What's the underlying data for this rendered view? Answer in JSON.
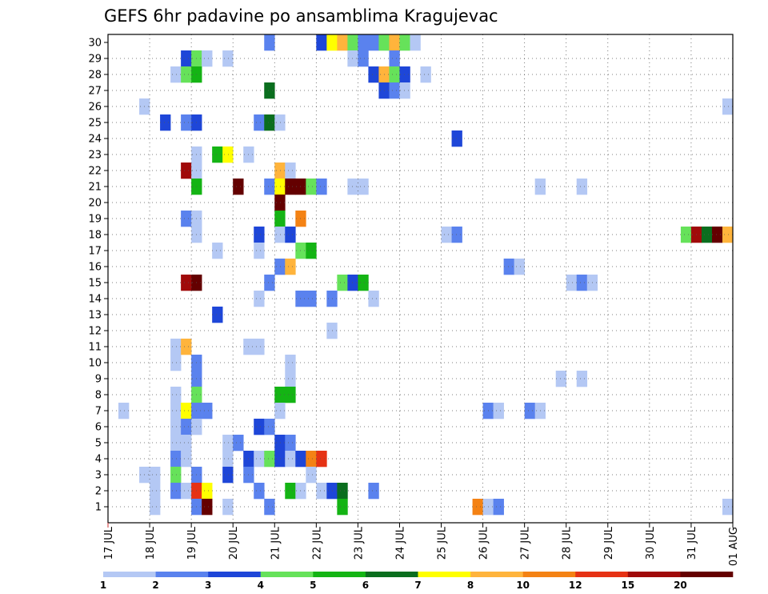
{
  "chart_data": {
    "type": "heatmap",
    "title": "GEFS 6hr padavine po ansamblima Kragujevac",
    "xlabel": "",
    "ylabel": "",
    "x_tick_labels": [
      "17 JUL",
      "18 JUL",
      "19 JUL",
      "20 JUL",
      "21 JUL",
      "22 JUL",
      "23 JUL",
      "24 JUL",
      "25 JUL",
      "26 JUL",
      "27 JUL",
      "28 JUL",
      "29 JUL",
      "30 JUL",
      "31 JUL",
      "01 AUG"
    ],
    "y_tick_labels": [
      "1",
      "2",
      "3",
      "4",
      "5",
      "6",
      "7",
      "8",
      "9",
      "10",
      "11",
      "12",
      "13",
      "14",
      "15",
      "16",
      "17",
      "18",
      "19",
      "20",
      "21",
      "22",
      "23",
      "24",
      "25",
      "26",
      "27",
      "28",
      "29",
      "30"
    ],
    "x_range_steps": [
      0,
      60
    ],
    "y_range": [
      0,
      30
    ],
    "grid": true,
    "colorbar": {
      "levels": [
        "1",
        "2",
        "3",
        "4",
        "5",
        "6",
        "7",
        "8",
        "10",
        "12",
        "15",
        "20"
      ],
      "colors": [
        "#b4c8f4",
        "#5a82ee",
        "#1e46d8",
        "#66e25a",
        "#14b414",
        "#0a6e1e",
        "#ffff00",
        "#ffb43c",
        "#f48214",
        "#e63214",
        "#a00a0a",
        "#640000"
      ]
    },
    "cells_note": "each cell: [6-hour step from 17 JUL 00Z, ensemble member, color class index 0-11]",
    "cells": [
      [
        15,
        30,
        1
      ],
      [
        20,
        30,
        2
      ],
      [
        21,
        30,
        6
      ],
      [
        22,
        30,
        7
      ],
      [
        23,
        30,
        3
      ],
      [
        24,
        30,
        1
      ],
      [
        25,
        30,
        1
      ],
      [
        26,
        30,
        3
      ],
      [
        27,
        30,
        7
      ],
      [
        28,
        30,
        3
      ],
      [
        29,
        30,
        0
      ],
      [
        7,
        29,
        2
      ],
      [
        8,
        29,
        3
      ],
      [
        9,
        29,
        0
      ],
      [
        11,
        29,
        0
      ],
      [
        23,
        29,
        0
      ],
      [
        24,
        29,
        1
      ],
      [
        27,
        29,
        1
      ],
      [
        6,
        28,
        0
      ],
      [
        7,
        28,
        3
      ],
      [
        8,
        28,
        4
      ],
      [
        25,
        28,
        2
      ],
      [
        26,
        28,
        7
      ],
      [
        27,
        28,
        3
      ],
      [
        28,
        28,
        2
      ],
      [
        30,
        28,
        0
      ],
      [
        15,
        27,
        5
      ],
      [
        26,
        27,
        2
      ],
      [
        27,
        27,
        1
      ],
      [
        28,
        27,
        0
      ],
      [
        3,
        26,
        0
      ],
      [
        59,
        26,
        0
      ],
      [
        5,
        25,
        2
      ],
      [
        7,
        25,
        1
      ],
      [
        8,
        25,
        2
      ],
      [
        14,
        25,
        1
      ],
      [
        15,
        25,
        5
      ],
      [
        16,
        25,
        0
      ],
      [
        33,
        24,
        2
      ],
      [
        10,
        23,
        4
      ],
      [
        11,
        23,
        6
      ],
      [
        13,
        23,
        0
      ],
      [
        8,
        23,
        0
      ],
      [
        7,
        22,
        10
      ],
      [
        8,
        22,
        0
      ],
      [
        16,
        22,
        7
      ],
      [
        17,
        22,
        0
      ],
      [
        8,
        21,
        4
      ],
      [
        12,
        21,
        11
      ],
      [
        15,
        21,
        1
      ],
      [
        16,
        21,
        6
      ],
      [
        17,
        21,
        11
      ],
      [
        18,
        21,
        11
      ],
      [
        19,
        21,
        3
      ],
      [
        20,
        21,
        1
      ],
      [
        23,
        21,
        0
      ],
      [
        24,
        21,
        0
      ],
      [
        41,
        21,
        0
      ],
      [
        45,
        21,
        0
      ],
      [
        16,
        20,
        11
      ],
      [
        7,
        19,
        1
      ],
      [
        8,
        19,
        0
      ],
      [
        16,
        19,
        4
      ],
      [
        18,
        19,
        8
      ],
      [
        8,
        18,
        0
      ],
      [
        14,
        18,
        2
      ],
      [
        16,
        18,
        0
      ],
      [
        17,
        18,
        2
      ],
      [
        32,
        18,
        0
      ],
      [
        33,
        18,
        1
      ],
      [
        55,
        18,
        3
      ],
      [
        56,
        18,
        10
      ],
      [
        57,
        18,
        5
      ],
      [
        58,
        18,
        11
      ],
      [
        59,
        18,
        7
      ],
      [
        10,
        17,
        0
      ],
      [
        14,
        17,
        0
      ],
      [
        18,
        17,
        3
      ],
      [
        19,
        17,
        4
      ],
      [
        16,
        16,
        1
      ],
      [
        17,
        16,
        7
      ],
      [
        38,
        16,
        1
      ],
      [
        39,
        16,
        0
      ],
      [
        7,
        15,
        10
      ],
      [
        8,
        15,
        11
      ],
      [
        15,
        15,
        1
      ],
      [
        22,
        15,
        3
      ],
      [
        23,
        15,
        2
      ],
      [
        24,
        15,
        4
      ],
      [
        44,
        15,
        0
      ],
      [
        45,
        15,
        1
      ],
      [
        46,
        15,
        0
      ],
      [
        14,
        14,
        0
      ],
      [
        18,
        14,
        1
      ],
      [
        19,
        14,
        1
      ],
      [
        21,
        14,
        1
      ],
      [
        25,
        14,
        0
      ],
      [
        10,
        13,
        2
      ],
      [
        21,
        12,
        0
      ],
      [
        6,
        11,
        0
      ],
      [
        7,
        11,
        7
      ],
      [
        13,
        11,
        0
      ],
      [
        14,
        11,
        0
      ],
      [
        6,
        10,
        0
      ],
      [
        8,
        10,
        1
      ],
      [
        17,
        10,
        0
      ],
      [
        8,
        9,
        1
      ],
      [
        17,
        9,
        0
      ],
      [
        43,
        9,
        0
      ],
      [
        45,
        9,
        0
      ],
      [
        6,
        8,
        0
      ],
      [
        8,
        8,
        3
      ],
      [
        16,
        8,
        4
      ],
      [
        17,
        8,
        4
      ],
      [
        1,
        7,
        0
      ],
      [
        6,
        7,
        0
      ],
      [
        7,
        7,
        6
      ],
      [
        8,
        7,
        1
      ],
      [
        9,
        7,
        1
      ],
      [
        16,
        7,
        0
      ],
      [
        36,
        7,
        1
      ],
      [
        37,
        7,
        0
      ],
      [
        40,
        7,
        1
      ],
      [
        41,
        7,
        0
      ],
      [
        6,
        6,
        0
      ],
      [
        7,
        6,
        1
      ],
      [
        8,
        6,
        0
      ],
      [
        14,
        6,
        2
      ],
      [
        15,
        6,
        1
      ],
      [
        6,
        5,
        0
      ],
      [
        7,
        5,
        0
      ],
      [
        11,
        5,
        0
      ],
      [
        12,
        5,
        1
      ],
      [
        16,
        5,
        2
      ],
      [
        17,
        5,
        1
      ],
      [
        6,
        4,
        1
      ],
      [
        7,
        4,
        0
      ],
      [
        11,
        4,
        0
      ],
      [
        13,
        4,
        2
      ],
      [
        14,
        4,
        0
      ],
      [
        15,
        4,
        3
      ],
      [
        16,
        4,
        2
      ],
      [
        17,
        4,
        0
      ],
      [
        18,
        4,
        2
      ],
      [
        19,
        4,
        8
      ],
      [
        20,
        4,
        9
      ],
      [
        3,
        3,
        0
      ],
      [
        4,
        3,
        0
      ],
      [
        6,
        3,
        3
      ],
      [
        8,
        3,
        1
      ],
      [
        11,
        3,
        2
      ],
      [
        13,
        3,
        1
      ],
      [
        19,
        3,
        0
      ],
      [
        4,
        2,
        0
      ],
      [
        6,
        2,
        1
      ],
      [
        7,
        2,
        0
      ],
      [
        8,
        2,
        9
      ],
      [
        9,
        2,
        6
      ],
      [
        14,
        2,
        1
      ],
      [
        17,
        2,
        4
      ],
      [
        18,
        2,
        0
      ],
      [
        20,
        2,
        0
      ],
      [
        21,
        2,
        2
      ],
      [
        22,
        2,
        5
      ],
      [
        25,
        2,
        1
      ],
      [
        4,
        1,
        0
      ],
      [
        8,
        1,
        1
      ],
      [
        9,
        1,
        11
      ],
      [
        11,
        1,
        0
      ],
      [
        15,
        1,
        1
      ],
      [
        22,
        1,
        4
      ],
      [
        35,
        1,
        8
      ],
      [
        36,
        1,
        0
      ],
      [
        37,
        1,
        1
      ],
      [
        59,
        1,
        0
      ]
    ]
  }
}
